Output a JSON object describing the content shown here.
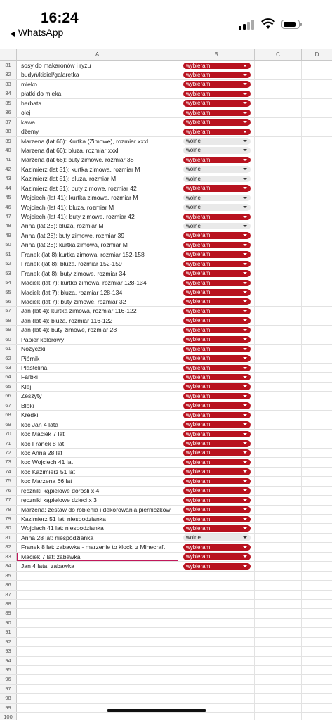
{
  "status_bar": {
    "time": "16:24",
    "back_app": "WhatsApp"
  },
  "columns": [
    "A",
    "B",
    "C",
    "D"
  ],
  "colors": {
    "chosen_chip": "#b8121f",
    "free_chip": "#e9e9e9",
    "selection": "#c2185b"
  },
  "rows": [
    {
      "n": "31",
      "a": "sosy do makaronów i ryżu",
      "b": "wybieram"
    },
    {
      "n": "32",
      "a": "budyń/kisiel/galaretka",
      "b": "wybieram"
    },
    {
      "n": "33",
      "a": "mleko",
      "b": "wybieram"
    },
    {
      "n": "34",
      "a": "płatki do mleka",
      "b": "wybieram"
    },
    {
      "n": "35",
      "a": "herbata",
      "b": "wybieram"
    },
    {
      "n": "36",
      "a": "olej",
      "b": "wybieram"
    },
    {
      "n": "37",
      "a": "kawa",
      "b": "wybieram"
    },
    {
      "n": "38",
      "a": "dżemy",
      "b": "wybieram"
    },
    {
      "n": "39",
      "a": "Marzena (lat 66): Kurtka (Zimowe), rozmiar xxxl",
      "b": "wolne"
    },
    {
      "n": "40",
      "a": "Marzena (lat 66): bluza, rozmiar xxxl",
      "b": "wolne"
    },
    {
      "n": "41",
      "a": "Marzena (lat 66): buty zimowe, rozmiar 38",
      "b": "wybieram"
    },
    {
      "n": "42",
      "a": "Kazimierz (lat 51): kurtka zimowa, rozmiar M",
      "b": "wolne"
    },
    {
      "n": "43",
      "a": "Kazimierz (lat 51): bluza, rozmiar M",
      "b": "wolne"
    },
    {
      "n": "44",
      "a": "Kazimierz (lat 51): buty zimowe, rozmiar 42",
      "b": "wybieram"
    },
    {
      "n": "45",
      "a": "Wojciech (lat 41): kurtka zimowa, rozmiar M",
      "b": "wolne"
    },
    {
      "n": "46",
      "a": "Wojciech (lat 41): bluza, rozmiar M",
      "b": "wolne"
    },
    {
      "n": "47",
      "a": "Wojciech (lat 41): buty zimowe, rozmiar 42",
      "b": "wybieram"
    },
    {
      "n": "48",
      "a": "Anna (lat 28): bluza, rozmiar M",
      "b": "wolne"
    },
    {
      "n": "49",
      "a": "Anna (lat 28): buty zimowe, rozmiar 39",
      "b": "wybieram"
    },
    {
      "n": "50",
      "a": "Anna (lat 28): kurtka zimowa, rozmiar M",
      "b": "wybieram"
    },
    {
      "n": "51",
      "a": "Franek (lat 8):kurtka zimowa, rozmiar 152-158",
      "b": "wybieram"
    },
    {
      "n": "52",
      "a": "Franek (lat 8): bluza, rozmiar 152-159",
      "b": "wybieram"
    },
    {
      "n": "53",
      "a": "Franek (lat 8): buty zimowe, rozmiar 34",
      "b": "wybieram"
    },
    {
      "n": "54",
      "a": "Maciek (lat 7): kurtka zimowa, rozmiar 128-134",
      "b": "wybieram"
    },
    {
      "n": "55",
      "a": "Maciek (lat 7): bluza, rozmiar 128-134",
      "b": "wybieram"
    },
    {
      "n": "56",
      "a": "Maciek (lat 7): buty zimowe, rozmiar 32",
      "b": "wybieram"
    },
    {
      "n": "57",
      "a": "Jan (lat 4): kurtka zimowa, rozmiar 116-122",
      "b": "wybieram"
    },
    {
      "n": "58",
      "a": "Jan (lat 4): bluza, rozmiar 116-122",
      "b": "wybieram"
    },
    {
      "n": "59",
      "a": "Jan (lat 4): buty zimowe, rozmiar 28",
      "b": "wybieram"
    },
    {
      "n": "60",
      "a": "Papier kolorowy",
      "b": "wybieram"
    },
    {
      "n": "61",
      "a": "Nożyczki",
      "b": "wybieram"
    },
    {
      "n": "62",
      "a": "Piórnik",
      "b": "wybieram"
    },
    {
      "n": "63",
      "a": "Plastelina",
      "b": "wybieram"
    },
    {
      "n": "64",
      "a": "Farbki",
      "b": "wybieram"
    },
    {
      "n": "65",
      "a": "Klej",
      "b": "wybieram"
    },
    {
      "n": "66",
      "a": "Zeszyty",
      "b": "wybieram"
    },
    {
      "n": "67",
      "a": "Bloki",
      "b": "wybieram"
    },
    {
      "n": "68",
      "a": "Kredki",
      "b": "wybieram"
    },
    {
      "n": "69",
      "a": "koc Jan 4 lata",
      "b": "wybieram"
    },
    {
      "n": "70",
      "a": "koc Maciek 7 lat",
      "b": "wybieram"
    },
    {
      "n": "71",
      "a": "koc Franek 8 lat",
      "b": "wybieram"
    },
    {
      "n": "72",
      "a": "koc Anna 28 lat",
      "b": "wybieram"
    },
    {
      "n": "73",
      "a": "koc Wojciech 41 lat",
      "b": "wybieram"
    },
    {
      "n": "74",
      "a": "koc Kazimierz 51 lat",
      "b": "wybieram"
    },
    {
      "n": "75",
      "a": "koc Marzena 66 lat",
      "b": "wybieram"
    },
    {
      "n": "76",
      "a": "ręczniki kąpielowe dorośli x 4",
      "b": "wybieram"
    },
    {
      "n": "77",
      "a": "ręczniki kąpielowe dzieci x 3",
      "b": "wybieram"
    },
    {
      "n": "78",
      "a": "Marzena: zestaw do robienia i dekorowania pierniczków",
      "b": "wybieram"
    },
    {
      "n": "79",
      "a": "Kazimierz 51 lat: niespodzianka",
      "b": "wybieram"
    },
    {
      "n": "80",
      "a": "Wojciech 41 lat: niespodzianka",
      "b": "wybieram"
    },
    {
      "n": "81",
      "a": "Anna 28 lat: niespodzianka",
      "b": "wolne"
    },
    {
      "n": "82",
      "a": "Franek 8 lat: zabawka - marzenie to klocki z Minecraft",
      "b": "wybieram"
    },
    {
      "n": "83",
      "a": "Maciek 7 lat: zabawka",
      "b": "wybieram"
    },
    {
      "n": "84",
      "a": "Jan 4 lata: zabawka",
      "b": "wybieram"
    },
    {
      "n": "85",
      "a": "",
      "b": ""
    },
    {
      "n": "86",
      "a": "",
      "b": ""
    },
    {
      "n": "87",
      "a": "",
      "b": ""
    },
    {
      "n": "88",
      "a": "",
      "b": ""
    },
    {
      "n": "89",
      "a": "",
      "b": ""
    },
    {
      "n": "90",
      "a": "",
      "b": ""
    },
    {
      "n": "91",
      "a": "",
      "b": ""
    },
    {
      "n": "92",
      "a": "",
      "b": ""
    },
    {
      "n": "93",
      "a": "",
      "b": ""
    },
    {
      "n": "94",
      "a": "",
      "b": ""
    },
    {
      "n": "95",
      "a": "",
      "b": ""
    },
    {
      "n": "96",
      "a": "",
      "b": ""
    },
    {
      "n": "97",
      "a": "",
      "b": ""
    },
    {
      "n": "98",
      "a": "",
      "b": ""
    },
    {
      "n": "99",
      "a": "",
      "b": ""
    },
    {
      "n": "100",
      "a": "",
      "b": ""
    }
  ],
  "selected_row": "83"
}
